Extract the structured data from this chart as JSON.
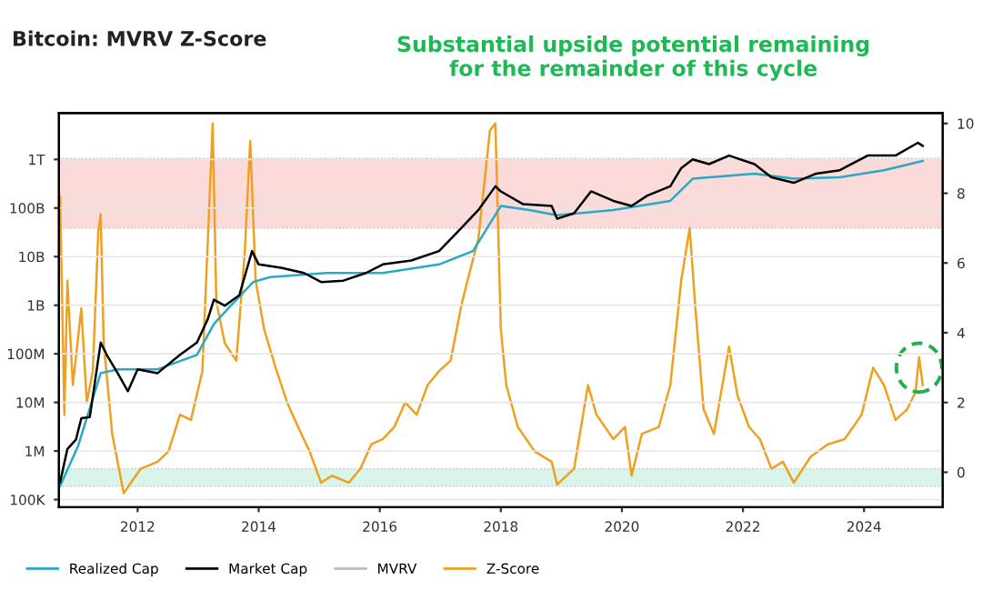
{
  "chart_data": {
    "type": "line",
    "title": "Bitcoin: MVRV Z-Score",
    "annotations": [
      "Substantial upside potential remaining\nfor the remainder of this cycle"
    ],
    "log": "y",
    "xlim": [
      2010.7,
      2025.3
    ],
    "xticks": [
      2012,
      2014,
      2016,
      2018,
      2020,
      2022,
      2024
    ],
    "ylim": [
      70000,
      9000000000000
    ],
    "yticks": [
      {
        "value": 100000,
        "label": "100K"
      },
      {
        "value": 1000000,
        "label": "1M"
      },
      {
        "value": 10000000,
        "label": "10M"
      },
      {
        "value": 100000000,
        "label": "100M"
      },
      {
        "value": 1000000000,
        "label": "1B"
      },
      {
        "value": 10000000000,
        "label": "10B"
      },
      {
        "value": 100000000000,
        "label": "100B"
      },
      {
        "value": 1000000000000,
        "label": "1T"
      }
    ],
    "y2lim": [
      -1,
      10.3
    ],
    "y2ticks": [
      0,
      2,
      4,
      6,
      8,
      10
    ],
    "grid": "y",
    "legend": "bottom",
    "bands": [
      {
        "axis": "y2",
        "from": 7,
        "to": 9,
        "color": "#fbdada"
      },
      {
        "axis": "y2",
        "from": -0.4,
        "to": 0.1,
        "color": "#d9f5ea"
      }
    ],
    "series": [
      {
        "name": "Realized Cap",
        "color": "#2ba8c4",
        "x": [
          2010.72,
          2011.02,
          2011.39,
          2011.67,
          2012.33,
          2012.98,
          2013.26,
          2013.54,
          2013.91,
          2014.19,
          2015.12,
          2016.05,
          2016.98,
          2017.54,
          2018.0,
          2018.47,
          2018.93,
          2019.86,
          2020.8,
          2021.17,
          2022.19,
          2022.84,
          2023.6,
          2024.33,
          2024.97
        ],
        "values": [
          190000,
          1300000,
          40000000,
          48000000,
          48000000,
          95000000,
          410000000,
          980000000,
          3000000000,
          3800000000,
          4600000000,
          4600000000,
          6900000000,
          13000000000,
          110000000000,
          91000000000,
          71000000000,
          91000000000,
          140000000000,
          400000000000,
          510000000000,
          400000000000,
          430000000000,
          600000000000,
          930000000000
        ]
      },
      {
        "name": "Market Cap",
        "color": "#000000",
        "x": [
          2010.72,
          2010.84,
          2010.98,
          2011.07,
          2011.21,
          2011.39,
          2011.49,
          2011.67,
          2011.84,
          2012.0,
          2012.33,
          2012.7,
          2012.98,
          2013.16,
          2013.26,
          2013.44,
          2013.68,
          2013.89,
          2014.0,
          2014.37,
          2014.75,
          2015.03,
          2015.4,
          2015.77,
          2016.05,
          2016.52,
          2016.98,
          2017.35,
          2017.63,
          2017.91,
          2018.0,
          2018.37,
          2018.84,
          2018.93,
          2019.21,
          2019.49,
          2019.86,
          2020.16,
          2020.42,
          2020.8,
          2020.98,
          2021.17,
          2021.44,
          2021.77,
          2022.19,
          2022.47,
          2022.84,
          2023.21,
          2023.6,
          2024.06,
          2024.52,
          2024.89,
          2024.97
        ],
        "values": [
          230000,
          1100000,
          1700000,
          4700000,
          5000000,
          170000000,
          95000000,
          40000000,
          17000000,
          48000000,
          40000000,
          95000000,
          170000000,
          520000000,
          1300000000,
          980000000,
          1600000000,
          13000000000,
          6900000000,
          5900000000,
          4600000000,
          3000000000,
          3200000000,
          4600000000,
          6900000000,
          8300000000,
          13000000000,
          39000000000,
          91000000000,
          280000000000,
          220000000000,
          120000000000,
          110000000000,
          60000000000,
          78000000000,
          220000000000,
          140000000000,
          110000000000,
          180000000000,
          280000000000,
          660000000000,
          1000000000000,
          800000000000,
          1200000000000,
          800000000000,
          430000000000,
          330000000000,
          510000000000,
          600000000000,
          1200000000000,
          1200000000000,
          2200000000000,
          1900000000000
        ]
      },
      {
        "name": "MVRV",
        "color": "#bbbbbb"
      },
      {
        "name": "Z-Score",
        "color": "#f0a020",
        "axis": "y2",
        "x": [
          2010.72,
          2010.79,
          2010.84,
          2010.93,
          2011.07,
          2011.16,
          2011.26,
          2011.35,
          2011.39,
          2011.44,
          2011.58,
          2011.77,
          2012.05,
          2012.33,
          2012.51,
          2012.7,
          2012.88,
          2013.07,
          2013.24,
          2013.3,
          2013.44,
          2013.63,
          2013.77,
          2013.86,
          2013.95,
          2014.09,
          2014.28,
          2014.47,
          2014.65,
          2014.84,
          2015.03,
          2015.21,
          2015.49,
          2015.68,
          2015.86,
          2016.05,
          2016.24,
          2016.42,
          2016.61,
          2016.79,
          2016.98,
          2017.17,
          2017.35,
          2017.45,
          2017.63,
          2017.82,
          2017.91,
          2018.0,
          2018.09,
          2018.28,
          2018.56,
          2018.84,
          2018.93,
          2019.21,
          2019.44,
          2019.58,
          2019.86,
          2020.05,
          2020.16,
          2020.33,
          2020.61,
          2020.8,
          2020.98,
          2021.12,
          2021.21,
          2021.35,
          2021.52,
          2021.77,
          2021.91,
          2022.1,
          2022.28,
          2022.47,
          2022.66,
          2022.84,
          2023.12,
          2023.4,
          2023.68,
          2023.96,
          2024.15,
          2024.33,
          2024.52,
          2024.71,
          2024.85,
          2024.91,
          2024.97
        ],
        "values": [
          7.9,
          1.65,
          5.5,
          2.5,
          4.7,
          2.0,
          2.9,
          6.9,
          7.4,
          3.7,
          1.1,
          -0.6,
          0.1,
          0.3,
          0.6,
          1.65,
          1.5,
          2.9,
          10.0,
          4.9,
          3.7,
          3.2,
          6.3,
          9.5,
          5.5,
          4.1,
          3.0,
          2.0,
          1.3,
          0.6,
          -0.3,
          -0.1,
          -0.3,
          0.1,
          0.8,
          0.95,
          1.3,
          2.0,
          1.65,
          2.5,
          2.9,
          3.2,
          4.8,
          5.5,
          6.7,
          9.8,
          10.0,
          4.1,
          2.5,
          1.3,
          0.6,
          0.3,
          -0.35,
          0.1,
          2.5,
          1.65,
          0.95,
          1.3,
          -0.1,
          1.1,
          1.3,
          2.5,
          5.5,
          7.0,
          4.8,
          1.8,
          1.1,
          3.6,
          2.2,
          1.3,
          0.95,
          0.1,
          0.3,
          -0.3,
          0.45,
          0.8,
          0.95,
          1.65,
          3.0,
          2.5,
          1.5,
          1.8,
          2.3,
          3.3,
          2.5
        ]
      }
    ]
  }
}
